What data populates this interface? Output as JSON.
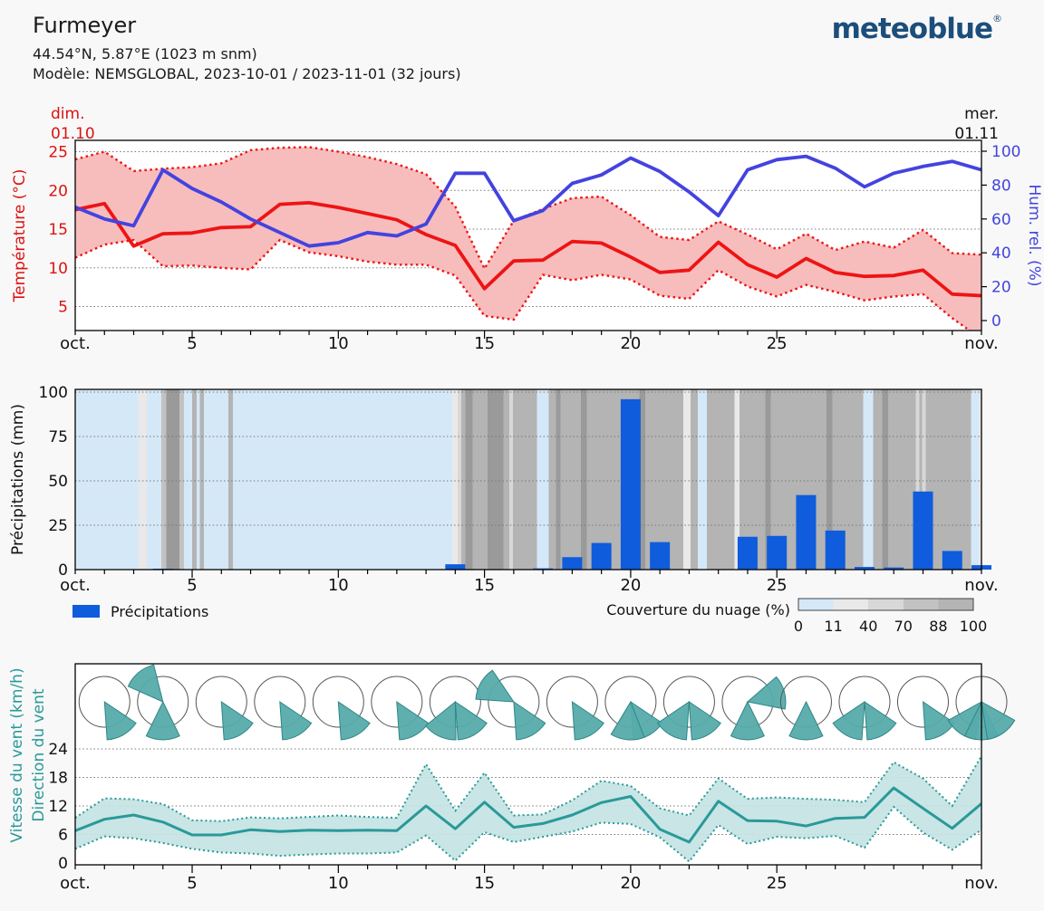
{
  "header": {
    "title": "Furmeyer",
    "subtitle1": "44.54°N, 5.87°E (1023 m snm)",
    "subtitle2": "Modèle: NEMSGLOBAL, 2023-10-01 / 2023-11-01 (32 jours)",
    "logo": "meteoblue",
    "logo_mark": "®"
  },
  "colors": {
    "red": "#dd1111",
    "red_line": "#ee1414",
    "pink_band": "#f7bdbd",
    "blue_line": "#4343e0",
    "blue_label": "#4444dd",
    "precip_blue": "#0f5cdd",
    "grid": "#777777",
    "teal": "#2a9999",
    "teal_band": "#c3e2e2",
    "teal_wedge": "#57abab",
    "teal_wedge_edge": "#2e8686",
    "logo_blue": "#1c4e7b",
    "cloud_classes": {
      "c0": "#d5e8f8",
      "c11": "#e9e9e9",
      "c40": "#d8d8d8",
      "c70": "#c2c2c2",
      "c88": "#b4b4b4",
      "c100": "#9a9a9a"
    }
  },
  "x_axis": {
    "labels": [
      {
        "text": "oct.",
        "day": 1
      },
      {
        "text": "5",
        "day": 5
      },
      {
        "text": "10",
        "day": 10
      },
      {
        "text": "15",
        "day": 15
      },
      {
        "text": "20",
        "day": 20
      },
      {
        "text": "25",
        "day": 25
      },
      {
        "text": "nov.",
        "day": 32
      }
    ],
    "day_min": 1,
    "day_max": 32
  },
  "chart_data": [
    {
      "type": "line",
      "name": "temperature-humidity",
      "ylabel_left": "Température (°C)",
      "ylabel_right": "Hum. rel. (%)",
      "yticks_left": [
        5,
        10,
        15,
        20,
        25
      ],
      "ylim_left": [
        2,
        26.5
      ],
      "yticks_right": [
        0,
        20,
        40,
        60,
        80,
        100
      ],
      "ylim_right": [
        0,
        100
      ],
      "start_label": {
        "line1": "dim.",
        "line2": "01.10"
      },
      "end_label": {
        "line1": "mer.",
        "line2": "01.11"
      },
      "series": [
        {
          "name": "temperature_mean",
          "unit": "°C",
          "values": [
            17.5,
            18.3,
            12.8,
            14.4,
            14.5,
            15.2,
            15.3,
            18.2,
            18.4,
            17.8,
            17.0,
            16.2,
            14.3,
            12.9,
            7.3,
            10.9,
            11.0,
            13.4,
            13.2,
            11.4,
            9.4,
            9.7,
            13.3,
            10.4,
            8.8,
            11.2,
            9.4,
            8.9,
            9.0,
            9.7,
            6.6,
            6.4
          ]
        },
        {
          "name": "temperature_max",
          "unit": "°C",
          "values": [
            24.0,
            25.0,
            22.5,
            22.8,
            23.0,
            23.5,
            25.2,
            25.5,
            25.6,
            25.0,
            24.3,
            23.4,
            22.1,
            17.9,
            9.9,
            16.1,
            17.6,
            19.0,
            19.2,
            16.8,
            14.0,
            13.6,
            16.0,
            14.3,
            12.4,
            14.4,
            12.3,
            13.4,
            12.6,
            14.9,
            11.9,
            11.7
          ]
        },
        {
          "name": "temperature_min",
          "unit": "°C",
          "values": [
            11.3,
            13.0,
            13.6,
            10.2,
            10.3,
            10.0,
            9.8,
            13.6,
            12.0,
            11.5,
            10.8,
            10.4,
            10.4,
            9.0,
            3.8,
            3.3,
            9.1,
            8.4,
            9.1,
            8.5,
            6.4,
            6.0,
            9.7,
            7.6,
            6.3,
            7.8,
            6.9,
            5.8,
            6.3,
            6.6,
            3.5,
            0.8
          ]
        },
        {
          "name": "relative_humidity",
          "unit": "%",
          "values": [
            67,
            60,
            56,
            89,
            78,
            70,
            60,
            52,
            44,
            46,
            52,
            50,
            57,
            87,
            87,
            59,
            65,
            81,
            86,
            96,
            88,
            76,
            62,
            89,
            95,
            97,
            90,
            79,
            87,
            91,
            94,
            89
          ]
        }
      ]
    },
    {
      "type": "bar",
      "name": "precipitation",
      "ylabel": "Précipitations (mm)",
      "yticks": [
        0,
        25,
        50,
        75,
        100
      ],
      "ylim": [
        0,
        101.5
      ],
      "legend": "Précipitations",
      "values": [
        0,
        0,
        0,
        0.5,
        0,
        0,
        0,
        0,
        0,
        0,
        0,
        0,
        0,
        3,
        0,
        0,
        0.7,
        7,
        15,
        96,
        15.5,
        0,
        0,
        18.5,
        19,
        42,
        22,
        1.5,
        1.2,
        44,
        10.5,
        2.5
      ],
      "cloud_cover": {
        "label": "Couverture du nuage (%)",
        "scale_labels": [
          "0",
          "11",
          "40",
          "70",
          "88",
          "100"
        ],
        "scale_classes": [
          "c0",
          "c11",
          "c40",
          "c70",
          "c88"
        ],
        "segments": [
          [
            1.0,
            3.15,
            "c0"
          ],
          [
            3.15,
            3.45,
            "c11"
          ],
          [
            3.45,
            3.95,
            "c0"
          ],
          [
            3.95,
            4.12,
            "c70"
          ],
          [
            4.12,
            4.57,
            "c100"
          ],
          [
            4.57,
            4.72,
            "c70"
          ],
          [
            4.72,
            5.0,
            "c0"
          ],
          [
            5.0,
            5.16,
            "c88"
          ],
          [
            5.16,
            5.26,
            "c0"
          ],
          [
            5.26,
            5.4,
            "c88"
          ],
          [
            5.4,
            6.24,
            "c0"
          ],
          [
            6.24,
            6.4,
            "c88"
          ],
          [
            6.4,
            13.9,
            "c0"
          ],
          [
            13.9,
            14.08,
            "c11"
          ],
          [
            14.08,
            14.2,
            "c40"
          ],
          [
            14.2,
            14.35,
            "c88"
          ],
          [
            14.35,
            14.6,
            "c100"
          ],
          [
            14.6,
            15.1,
            "c88"
          ],
          [
            15.1,
            15.65,
            "c100"
          ],
          [
            15.65,
            15.85,
            "c88"
          ],
          [
            15.85,
            15.98,
            "c40"
          ],
          [
            15.98,
            16.8,
            "c88"
          ],
          [
            16.8,
            17.2,
            "c0"
          ],
          [
            17.2,
            17.45,
            "c88"
          ],
          [
            17.45,
            17.6,
            "c100"
          ],
          [
            17.6,
            18.3,
            "c88"
          ],
          [
            18.3,
            18.5,
            "c100"
          ],
          [
            18.5,
            20.3,
            "c88"
          ],
          [
            20.3,
            20.5,
            "c100"
          ],
          [
            20.5,
            21.8,
            "c88"
          ],
          [
            21.8,
            22.05,
            "c11"
          ],
          [
            22.05,
            22.3,
            "c88"
          ],
          [
            22.3,
            22.6,
            "c0"
          ],
          [
            22.6,
            23.55,
            "c88"
          ],
          [
            23.55,
            23.72,
            "c11"
          ],
          [
            23.72,
            24.6,
            "c88"
          ],
          [
            24.6,
            24.8,
            "c100"
          ],
          [
            24.8,
            26.7,
            "c88"
          ],
          [
            26.7,
            26.9,
            "c100"
          ],
          [
            26.9,
            27.95,
            "c88"
          ],
          [
            27.95,
            28.3,
            "c0"
          ],
          [
            28.3,
            28.6,
            "c88"
          ],
          [
            28.6,
            28.8,
            "c100"
          ],
          [
            28.8,
            29.75,
            "c88"
          ],
          [
            29.75,
            29.87,
            "c40"
          ],
          [
            29.87,
            29.97,
            "c88"
          ],
          [
            29.97,
            30.1,
            "c40"
          ],
          [
            30.1,
            31.65,
            "c88"
          ],
          [
            31.65,
            31.9,
            "c0"
          ],
          [
            31.9,
            32.0,
            "c11"
          ]
        ]
      }
    },
    {
      "type": "line",
      "name": "wind",
      "ylabel_line1": "Vitesse du vent (km/h)",
      "ylabel_line2": "Direction du vent",
      "yticks": [
        0,
        6,
        12,
        18,
        24
      ],
      "ylim": [
        0,
        27
      ],
      "series": [
        {
          "name": "wind_speed_mean",
          "unit": "km/h",
          "values": [
            6.8,
            9.2,
            10.1,
            8.6,
            5.9,
            5.9,
            7.0,
            6.6,
            6.9,
            6.8,
            6.9,
            6.8,
            12.0,
            7.2,
            12.8,
            7.5,
            8.3,
            10.1,
            12.7,
            14.0,
            7.1,
            4.4,
            13.0,
            8.9,
            8.8,
            7.8,
            9.4,
            9.6,
            15.8,
            11.5,
            7.3,
            12.5
          ]
        },
        {
          "name": "wind_speed_max",
          "unit": "km/h",
          "values": [
            9.5,
            13.6,
            13.4,
            12.4,
            9.0,
            8.8,
            9.6,
            9.4,
            9.7,
            10.0,
            9.7,
            9.5,
            20.8,
            11.0,
            19.0,
            10.0,
            10.2,
            13.2,
            17.3,
            16.2,
            11.5,
            10.0,
            17.8,
            13.5,
            13.8,
            13.5,
            13.3,
            12.8,
            21.2,
            17.8,
            12.0,
            22.5
          ]
        },
        {
          "name": "wind_speed_min",
          "unit": "km/h",
          "values": [
            3.0,
            5.6,
            5.2,
            4.2,
            3.0,
            2.2,
            2.0,
            1.5,
            1.8,
            2.0,
            2.0,
            2.2,
            5.8,
            0.5,
            6.5,
            4.4,
            5.5,
            6.6,
            8.5,
            8.2,
            5.4,
            0.3,
            8.0,
            4.0,
            5.5,
            5.2,
            5.7,
            3.2,
            11.8,
            6.4,
            2.8,
            7.0
          ]
        }
      ],
      "direction_circles": [
        {
          "day": 2,
          "wedge_azimuths": [
            150
          ]
        },
        {
          "day": 4,
          "wedge_azimuths": [
            320,
            180
          ]
        },
        {
          "day": 6,
          "wedge_azimuths": [
            150
          ]
        },
        {
          "day": 8,
          "wedge_azimuths": [
            150
          ]
        },
        {
          "day": 10,
          "wedge_azimuths": [
            150
          ]
        },
        {
          "day": 12,
          "wedge_azimuths": [
            150
          ]
        },
        {
          "day": 14,
          "wedge_azimuths": [
            205,
            150
          ]
        },
        {
          "day": 16,
          "wedge_azimuths": [
            300,
            150
          ]
        },
        {
          "day": 18,
          "wedge_azimuths": [
            150
          ]
        },
        {
          "day": 20,
          "wedge_azimuths": [
            150,
            185
          ]
        },
        {
          "day": 22,
          "wedge_azimuths": [
            210,
            150
          ]
        },
        {
          "day": 24,
          "wedge_azimuths": [
            75,
            180
          ]
        },
        {
          "day": 26,
          "wedge_azimuths": [
            180
          ]
        },
        {
          "day": 28,
          "wedge_azimuths": [
            210,
            150
          ]
        },
        {
          "day": 30,
          "wedge_azimuths": [
            150
          ]
        },
        {
          "day": 32,
          "wedge_azimuths": [
            215,
            180,
            145
          ]
        }
      ]
    }
  ]
}
